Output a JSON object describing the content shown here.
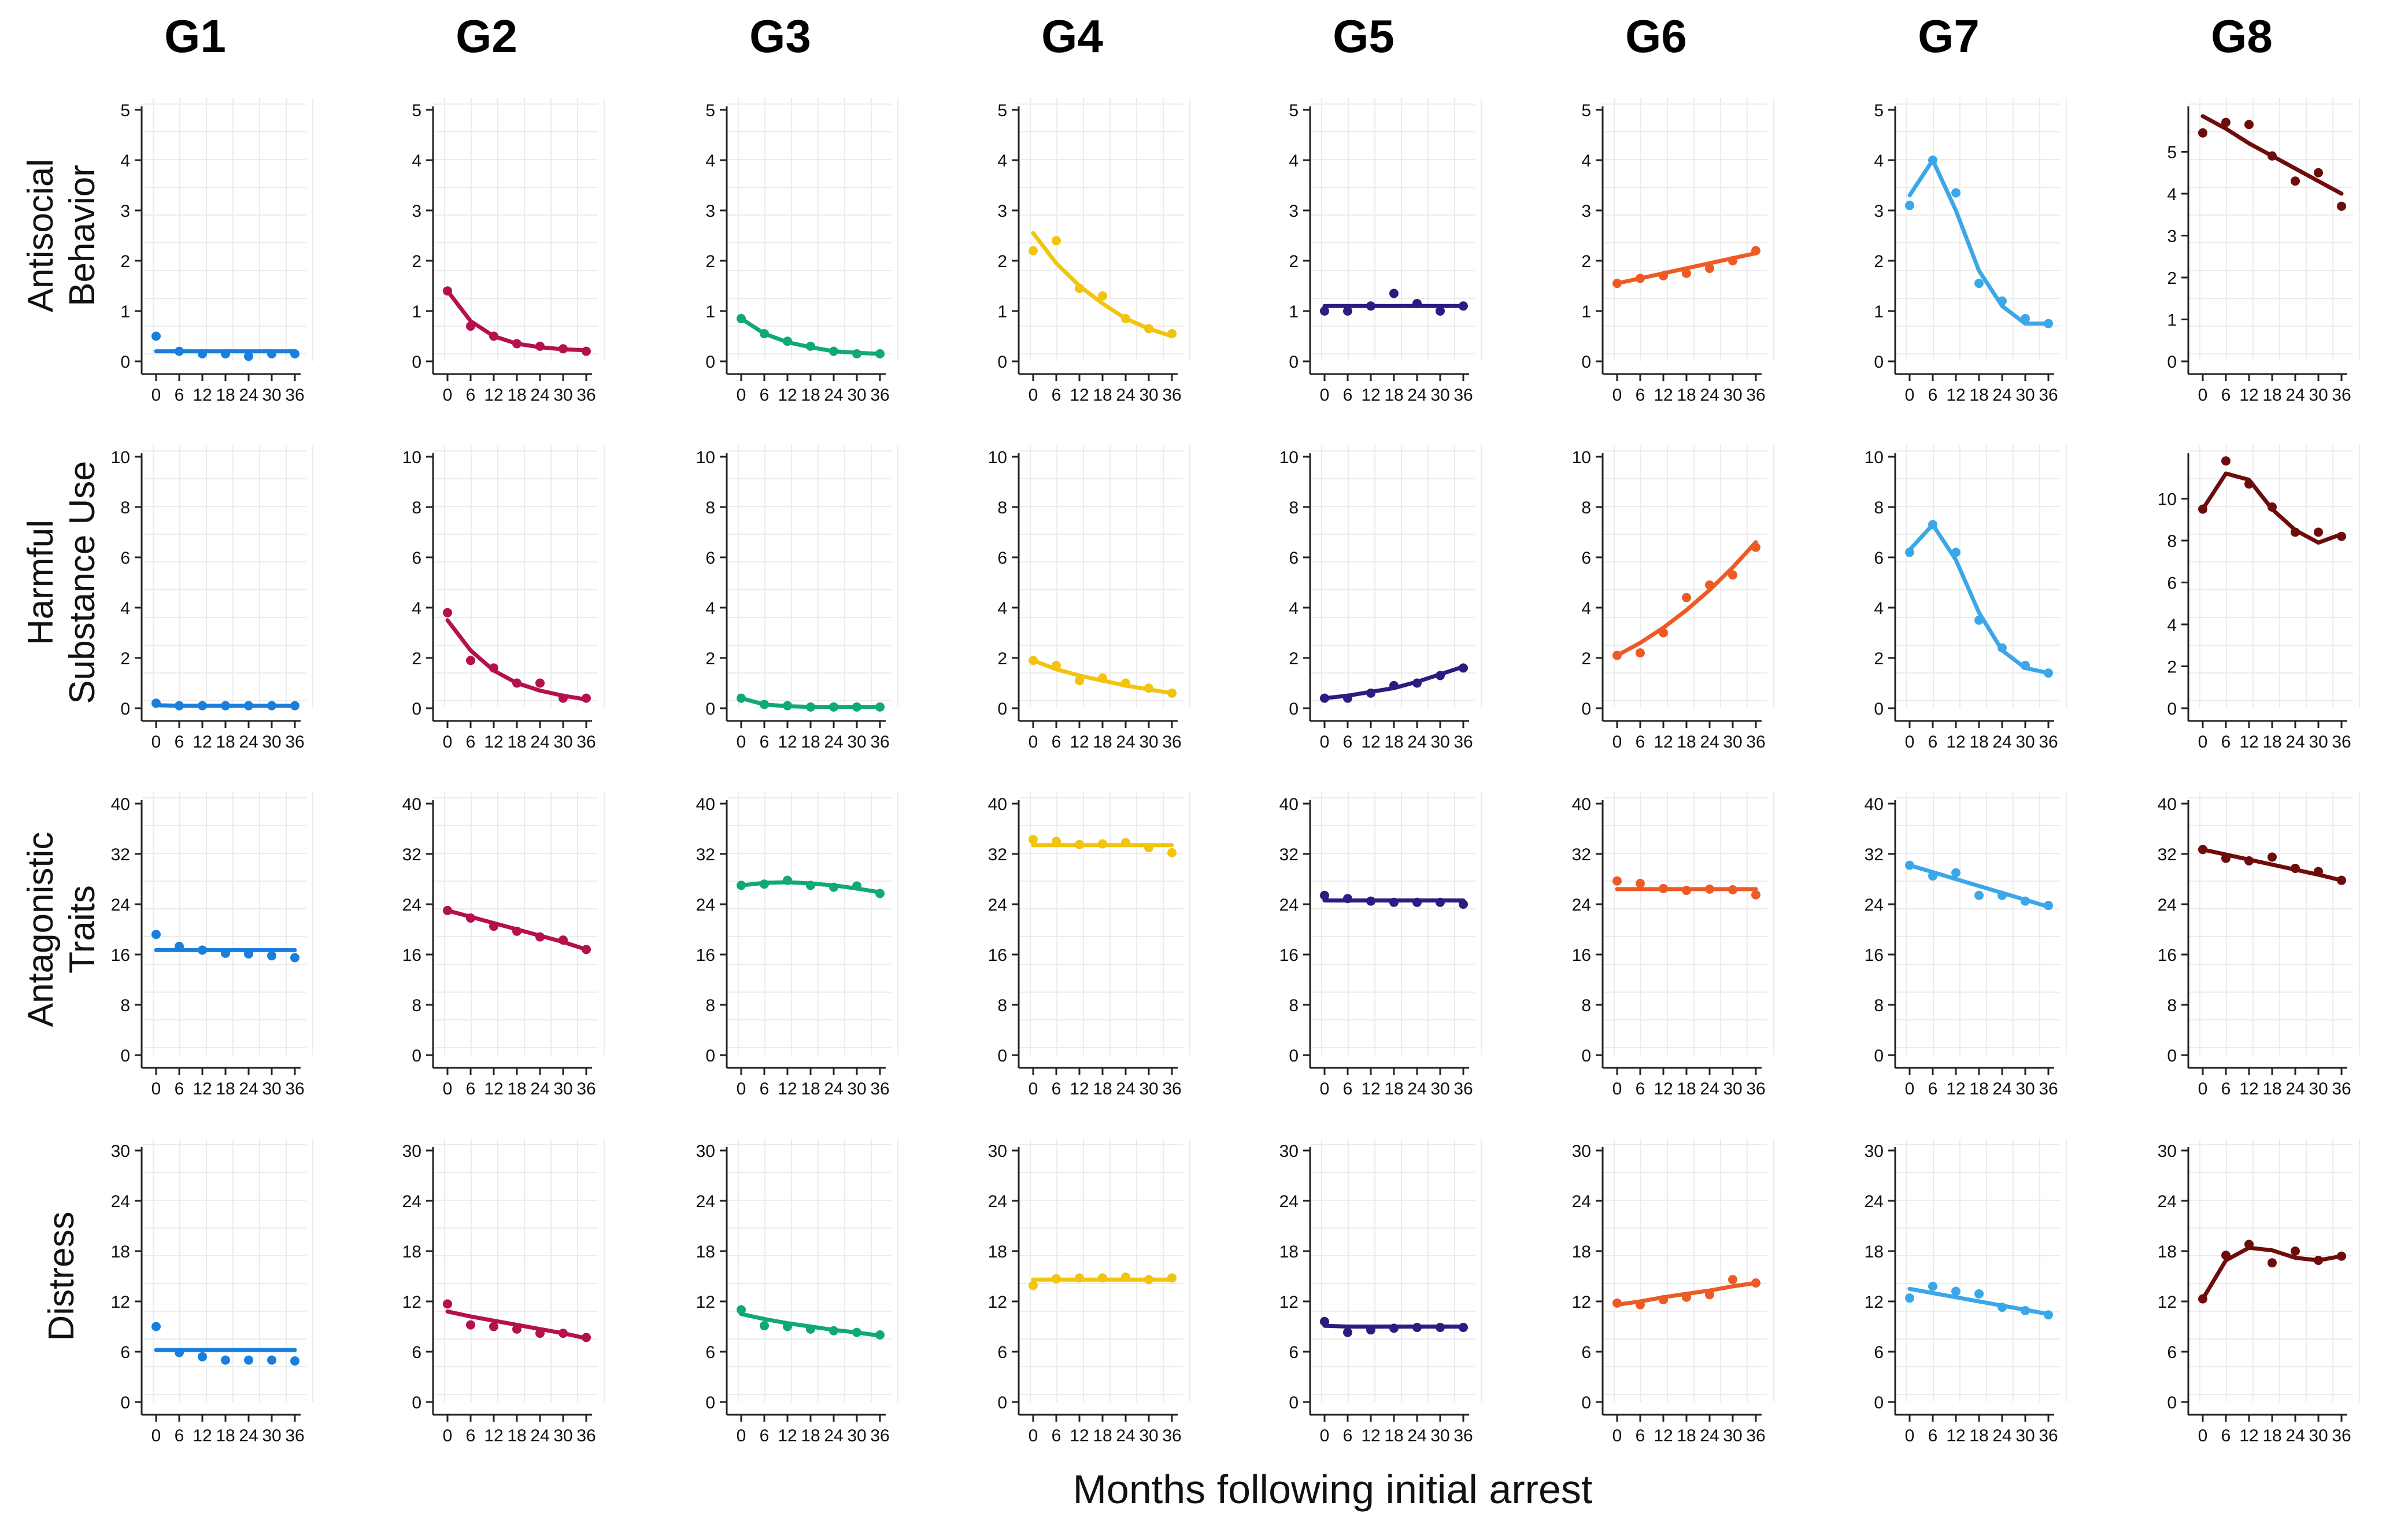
{
  "chart_data": {
    "type": "line",
    "xlabel": "Months following initial arrest",
    "x": [
      0,
      6,
      12,
      18,
      24,
      30,
      36
    ],
    "x_tick_labels": [
      "0",
      "6",
      "12",
      "18",
      "24",
      "30",
      "36"
    ],
    "groups": [
      {
        "name": "G1",
        "color": "#1a7fdc"
      },
      {
        "name": "G2",
        "color": "#b5104e"
      },
      {
        "name": "G3",
        "color": "#0fa878"
      },
      {
        "name": "G4",
        "color": "#f2c40d"
      },
      {
        "name": "G5",
        "color": "#2e1a80"
      },
      {
        "name": "G6",
        "color": "#ee5a24"
      },
      {
        "name": "G7",
        "color": "#3ba7e8"
      },
      {
        "name": "G8",
        "color": "#6e0b0b"
      }
    ],
    "rows": [
      {
        "label": [
          "Antisocial",
          "Behavior"
        ],
        "ylim": [
          0,
          5
        ],
        "yticks": [
          0,
          1,
          2,
          3,
          4,
          5
        ],
        "panels": [
          {
            "group": "G1",
            "points": [
              0.5,
              0.2,
              0.15,
              0.15,
              0.1,
              0.15,
              0.15
            ],
            "fit": [
              0.2,
              0.2,
              0.2,
              0.2,
              0.2,
              0.2,
              0.2
            ]
          },
          {
            "group": "G2",
            "points": [
              1.4,
              0.7,
              0.5,
              0.35,
              0.3,
              0.25,
              0.2
            ],
            "fit": [
              1.4,
              0.8,
              0.5,
              0.35,
              0.28,
              0.24,
              0.22
            ]
          },
          {
            "group": "G3",
            "points": [
              0.85,
              0.55,
              0.4,
              0.3,
              0.2,
              0.15,
              0.15
            ],
            "fit": [
              0.85,
              0.55,
              0.38,
              0.28,
              0.2,
              0.17,
              0.15
            ]
          },
          {
            "group": "G4",
            "points": [
              2.2,
              2.4,
              1.45,
              1.3,
              0.85,
              0.65,
              0.55
            ],
            "fit": [
              2.55,
              1.95,
              1.5,
              1.15,
              0.85,
              0.65,
              0.5
            ]
          },
          {
            "group": "G5",
            "points": [
              1.0,
              1.0,
              1.1,
              1.35,
              1.15,
              1.0,
              1.1
            ],
            "fit": [
              1.1,
              1.1,
              1.1,
              1.1,
              1.1,
              1.1,
              1.1
            ]
          },
          {
            "group": "G6",
            "points": [
              1.55,
              1.65,
              1.7,
              1.75,
              1.85,
              2.0,
              2.2
            ],
            "fit": [
              1.55,
              1.65,
              1.75,
              1.85,
              1.95,
              2.05,
              2.15
            ]
          },
          {
            "group": "G7",
            "points": [
              3.1,
              4.0,
              3.35,
              1.55,
              1.2,
              0.85,
              0.75
            ],
            "fit": [
              3.3,
              4.0,
              3.0,
              1.8,
              1.1,
              0.75,
              0.75
            ]
          },
          {
            "group": "G8",
            "points": [
              5.45,
              5.7,
              5.65,
              4.9,
              4.3,
              4.5,
              3.7
            ],
            "fit": [
              5.85,
              5.55,
              5.2,
              4.9,
              4.6,
              4.3,
              4.0
            ]
          }
        ]
      },
      {
        "label": [
          "Harmful",
          "Substance Use"
        ],
        "ylim": [
          0,
          10
        ],
        "yticks": [
          0,
          2,
          4,
          6,
          8,
          10
        ],
        "panels": [
          {
            "group": "G1",
            "points": [
              0.2,
              0.1,
              0.1,
              0.1,
              0.1,
              0.1,
              0.1
            ],
            "fit": [
              0.12,
              0.1,
              0.1,
              0.1,
              0.1,
              0.1,
              0.1
            ]
          },
          {
            "group": "G2",
            "points": [
              3.8,
              1.9,
              1.6,
              1.0,
              1.0,
              0.4,
              0.4
            ],
            "fit": [
              3.5,
              2.3,
              1.5,
              1.0,
              0.7,
              0.5,
              0.35
            ]
          },
          {
            "group": "G3",
            "points": [
              0.4,
              0.15,
              0.1,
              0.05,
              0.05,
              0.05,
              0.05
            ],
            "fit": [
              0.4,
              0.15,
              0.08,
              0.05,
              0.05,
              0.05,
              0.05
            ]
          },
          {
            "group": "G4",
            "points": [
              1.9,
              1.7,
              1.1,
              1.2,
              1.0,
              0.8,
              0.6
            ],
            "fit": [
              1.9,
              1.55,
              1.3,
              1.1,
              0.9,
              0.75,
              0.6
            ]
          },
          {
            "group": "G5",
            "points": [
              0.4,
              0.4,
              0.6,
              0.9,
              1.0,
              1.3,
              1.6
            ],
            "fit": [
              0.4,
              0.5,
              0.65,
              0.8,
              1.05,
              1.35,
              1.65
            ]
          },
          {
            "group": "G6",
            "points": [
              2.1,
              2.2,
              3.0,
              4.4,
              4.9,
              5.3,
              6.4
            ],
            "fit": [
              2.1,
              2.6,
              3.2,
              3.9,
              4.7,
              5.6,
              6.6
            ]
          },
          {
            "group": "G7",
            "points": [
              6.2,
              7.3,
              6.2,
              3.5,
              2.4,
              1.7,
              1.4
            ],
            "fit": [
              6.3,
              7.3,
              5.9,
              3.8,
              2.3,
              1.6,
              1.4
            ]
          }
        ]
      },
      {
        "label": [
          "Antagonistic",
          "Traits"
        ],
        "ylim": [
          0,
          40
        ],
        "yticks": [
          0,
          8,
          16,
          24,
          32,
          40
        ],
        "panels": [
          {
            "group": "G1",
            "points": [
              19.2,
              17.3,
              16.7,
              16.2,
              16.1,
              15.8,
              15.5
            ],
            "fit": [
              16.7,
              16.7,
              16.7,
              16.7,
              16.7,
              16.7,
              16.7
            ]
          },
          {
            "group": "G2",
            "points": [
              23.0,
              21.8,
              20.5,
              19.7,
              18.8,
              18.3,
              16.8
            ],
            "fit": [
              23.0,
              22.0,
              21.0,
              20.0,
              19.0,
              18.0,
              16.8
            ]
          },
          {
            "group": "G3",
            "points": [
              27.0,
              27.2,
              27.8,
              27.0,
              26.7,
              26.9,
              25.7
            ],
            "fit": [
              27.0,
              27.4,
              27.5,
              27.3,
              27.0,
              26.5,
              25.9
            ]
          },
          {
            "group": "G4",
            "points": [
              34.3,
              34.0,
              33.5,
              33.6,
              33.8,
              33.0,
              32.2
            ],
            "fit": [
              33.4,
              33.4,
              33.4,
              33.4,
              33.4,
              33.4,
              33.4
            ]
          },
          {
            "group": "G5",
            "points": [
              25.4,
              24.9,
              24.5,
              24.3,
              24.3,
              24.3,
              24.0
            ],
            "fit": [
              24.6,
              24.6,
              24.6,
              24.6,
              24.6,
              24.6,
              24.6
            ]
          },
          {
            "group": "G6",
            "points": [
              27.7,
              27.3,
              26.5,
              26.2,
              26.4,
              26.3,
              25.5
            ],
            "fit": [
              26.4,
              26.4,
              26.4,
              26.4,
              26.4,
              26.4,
              26.4
            ]
          },
          {
            "group": "G7",
            "points": [
              30.2,
              28.5,
              29.0,
              25.4,
              25.4,
              24.5,
              23.8
            ],
            "fit": [
              30.2,
              29.1,
              28.0,
              26.9,
              25.8,
              24.7,
              23.6
            ]
          },
          {
            "group": "G8",
            "points": [
              32.7,
              31.3,
              30.9,
              31.5,
              29.7,
              29.2,
              27.8
            ],
            "fit": [
              32.7,
              31.9,
              31.1,
              30.3,
              29.5,
              28.7,
              27.8
            ]
          }
        ]
      },
      {
        "label": [
          "Distress"
        ],
        "ylim": [
          0,
          30
        ],
        "yticks": [
          0,
          6,
          12,
          18,
          24,
          30
        ],
        "panels": [
          {
            "group": "G1",
            "points": [
              9.0,
              5.9,
              5.4,
              5.0,
              5.0,
              5.0,
              4.9
            ],
            "fit": [
              6.2,
              6.2,
              6.2,
              6.2,
              6.2,
              6.2,
              6.2
            ]
          },
          {
            "group": "G2",
            "points": [
              11.7,
              9.2,
              9.0,
              8.7,
              8.2,
              8.2,
              7.7
            ],
            "fit": [
              10.8,
              10.2,
              9.7,
              9.2,
              8.7,
              8.2,
              7.6
            ]
          },
          {
            "group": "G3",
            "points": [
              11.0,
              9.1,
              9.0,
              8.7,
              8.5,
              8.3,
              8.0
            ],
            "fit": [
              10.5,
              9.9,
              9.4,
              9.0,
              8.6,
              8.3,
              7.9
            ]
          },
          {
            "group": "G4",
            "points": [
              13.9,
              14.7,
              14.8,
              14.8,
              14.9,
              14.6,
              14.8
            ],
            "fit": [
              14.6,
              14.6,
              14.6,
              14.6,
              14.6,
              14.6,
              14.6
            ]
          },
          {
            "group": "G5",
            "points": [
              9.6,
              8.3,
              8.6,
              8.8,
              8.9,
              8.9,
              8.9
            ],
            "fit": [
              9.1,
              9.0,
              9.0,
              9.0,
              9.0,
              9.0,
              9.0
            ]
          },
          {
            "group": "G6",
            "points": [
              11.8,
              11.6,
              12.2,
              12.5,
              12.8,
              14.6,
              14.2
            ],
            "fit": [
              11.6,
              12.0,
              12.5,
              12.9,
              13.3,
              13.8,
              14.2
            ]
          },
          {
            "group": "G7",
            "points": [
              12.4,
              13.8,
              13.2,
              12.9,
              11.3,
              10.9,
              10.4
            ],
            "fit": [
              13.5,
              13.0,
              12.5,
              12.0,
              11.5,
              11.0,
              10.5
            ]
          },
          {
            "group": "G8",
            "points": [
              12.3,
              17.5,
              18.8,
              16.6,
              18.0,
              16.9,
              17.4
            ],
            "fit": [
              12.3,
              16.9,
              18.4,
              18.1,
              17.2,
              16.9,
              17.4
            ]
          }
        ]
      }
    ]
  },
  "row_extra": {
    "substance_g8": {
      "group": "G8",
      "ylim": [
        0,
        12
      ],
      "yticks": [
        0,
        2,
        4,
        6,
        8,
        10
      ],
      "points": [
        9.5,
        11.8,
        10.7,
        9.6,
        8.4,
        8.4,
        8.2
      ],
      "fit": [
        9.5,
        11.2,
        10.9,
        9.5,
        8.5,
        7.9,
        8.3
      ]
    },
    "antisocial_g8_ylim": [
      0,
      6
    ]
  }
}
